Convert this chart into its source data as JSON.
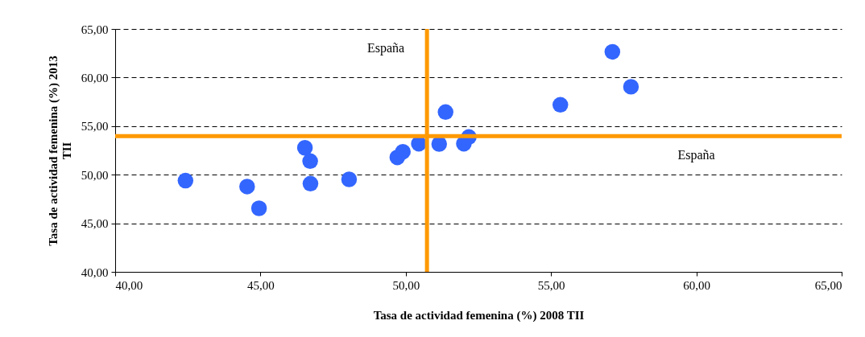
{
  "chart_data": {
    "type": "scatter",
    "xlabel": "Tasa de actividad femenina (%) 2008 TII",
    "ylabel": "Tasa de actividad femenina (%) 2013 TII",
    "x": [
      42.42,
      44.54,
      44.95,
      46.53,
      46.71,
      46.72,
      48.05,
      49.71,
      49.9,
      50.45,
      51.37,
      51.15,
      52.0,
      52.17,
      55.32,
      57.11,
      57.75
    ],
    "series": [
      {
        "color": "#3366ff",
        "values": [
          49.39,
          48.78,
          46.54,
          52.77,
          51.4,
          49.08,
          49.52,
          51.78,
          52.36,
          53.19,
          56.45,
          53.16,
          53.19,
          53.88,
          57.19,
          62.65,
          59.05
        ]
      }
    ],
    "marker": "circle",
    "xlim": [
      40,
      65
    ],
    "ylim": [
      40,
      65
    ],
    "xticks": [
      {
        "value": 40,
        "label": "40,00"
      },
      {
        "value": 45,
        "label": "45,00"
      },
      {
        "value": 50,
        "label": "50,00"
      },
      {
        "value": 55,
        "label": "55,00"
      },
      {
        "value": 60,
        "label": "60,00"
      },
      {
        "value": 65,
        "label": "65,00"
      }
    ],
    "yticks": [
      {
        "value": 40,
        "label": "40,00"
      },
      {
        "value": 45,
        "label": "45,00"
      },
      {
        "value": 50,
        "label": "50,00"
      },
      {
        "value": 55,
        "label": "55,00"
      },
      {
        "value": 60,
        "label": "60,00"
      },
      {
        "value": 65,
        "label": "65,00"
      }
    ],
    "grid": "y",
    "ref_lines": [
      {
        "axis": "x",
        "value": 50.73,
        "label": "España",
        "color": "#ff9900"
      },
      {
        "axis": "y",
        "value": 53.97,
        "label": "España",
        "color": "#ff9900"
      }
    ]
  }
}
